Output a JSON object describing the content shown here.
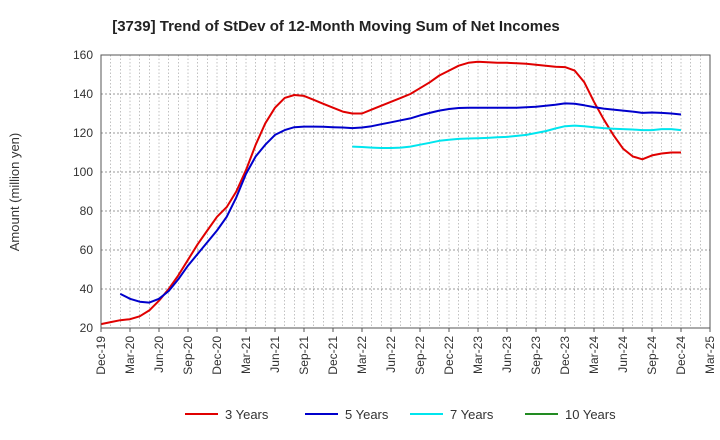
{
  "chart_data": {
    "type": "line",
    "title": "[3739]  Trend of StDev of 12-Month Moving Sum of Net Incomes",
    "ylabel": "Amount (million yen)",
    "xlabel": "",
    "ylim": [
      20,
      160
    ],
    "yticks": [
      20,
      40,
      60,
      80,
      100,
      120,
      140,
      160
    ],
    "xlim": [
      "2019-12",
      "2025-03"
    ],
    "xticks": [
      "Dec-19",
      "Mar-20",
      "Jun-20",
      "Sep-20",
      "Dec-20",
      "Mar-21",
      "Jun-21",
      "Sep-21",
      "Dec-21",
      "Mar-22",
      "Jun-22",
      "Sep-22",
      "Dec-22",
      "Mar-23",
      "Jun-23",
      "Sep-23",
      "Dec-23",
      "Mar-24",
      "Jun-24",
      "Sep-24",
      "Dec-24",
      "Mar-25"
    ],
    "grid": true,
    "legend_position": "bottom",
    "series": [
      {
        "name": "3 Years",
        "color": "#e00000",
        "points": [
          [
            "2019-12",
            22
          ],
          [
            "2020-01",
            23
          ],
          [
            "2020-02",
            24
          ],
          [
            "2020-03",
            24.5
          ],
          [
            "2020-04",
            26
          ],
          [
            "2020-05",
            29
          ],
          [
            "2020-06",
            34
          ],
          [
            "2020-07",
            40
          ],
          [
            "2020-08",
            47
          ],
          [
            "2020-09",
            55
          ],
          [
            "2020-10",
            63
          ],
          [
            "2020-11",
            70
          ],
          [
            "2020-12",
            77
          ],
          [
            "2021-01",
            82
          ],
          [
            "2021-02",
            90
          ],
          [
            "2021-03",
            101
          ],
          [
            "2021-04",
            114
          ],
          [
            "2021-05",
            125
          ],
          [
            "2021-06",
            133
          ],
          [
            "2021-07",
            138
          ],
          [
            "2021-08",
            139.5
          ],
          [
            "2021-09",
            139
          ],
          [
            "2021-10",
            137
          ],
          [
            "2021-11",
            135
          ],
          [
            "2021-12",
            133
          ],
          [
            "2022-01",
            131
          ],
          [
            "2022-02",
            130
          ],
          [
            "2022-03",
            130
          ],
          [
            "2022-04",
            132
          ],
          [
            "2022-05",
            134
          ],
          [
            "2022-06",
            136
          ],
          [
            "2022-07",
            138
          ],
          [
            "2022-08",
            140
          ],
          [
            "2022-09",
            143
          ],
          [
            "2022-10",
            146
          ],
          [
            "2022-11",
            149.5
          ],
          [
            "2022-12",
            152
          ],
          [
            "2023-01",
            154.5
          ],
          [
            "2023-02",
            156
          ],
          [
            "2023-03",
            156.5
          ],
          [
            "2023-04",
            156.3
          ],
          [
            "2023-05",
            156
          ],
          [
            "2023-06",
            156
          ],
          [
            "2023-07",
            155.8
          ],
          [
            "2023-08",
            155.5
          ],
          [
            "2023-09",
            155
          ],
          [
            "2023-10",
            154.5
          ],
          [
            "2023-11",
            154
          ],
          [
            "2023-12",
            153.8
          ],
          [
            "2024-01",
            152
          ],
          [
            "2024-02",
            146
          ],
          [
            "2024-03",
            136
          ],
          [
            "2024-04",
            127
          ],
          [
            "2024-05",
            119
          ],
          [
            "2024-06",
            112
          ],
          [
            "2024-07",
            108
          ],
          [
            "2024-08",
            106.5
          ],
          [
            "2024-09",
            108.5
          ],
          [
            "2024-10",
            109.5
          ],
          [
            "2024-11",
            110
          ],
          [
            "2024-12",
            110
          ]
        ]
      },
      {
        "name": "5 Years",
        "color": "#0000cc",
        "points": [
          [
            "2020-02",
            37.5
          ],
          [
            "2020-03",
            35
          ],
          [
            "2020-04",
            33.5
          ],
          [
            "2020-05",
            33
          ],
          [
            "2020-06",
            35
          ],
          [
            "2020-07",
            39
          ],
          [
            "2020-08",
            45
          ],
          [
            "2020-09",
            52
          ],
          [
            "2020-10",
            58
          ],
          [
            "2020-11",
            64
          ],
          [
            "2020-12",
            70
          ],
          [
            "2021-01",
            77
          ],
          [
            "2021-02",
            87
          ],
          [
            "2021-03",
            99
          ],
          [
            "2021-04",
            108
          ],
          [
            "2021-05",
            114
          ],
          [
            "2021-06",
            119
          ],
          [
            "2021-07",
            121.5
          ],
          [
            "2021-08",
            123
          ],
          [
            "2021-09",
            123.3
          ],
          [
            "2021-10",
            123.3
          ],
          [
            "2021-11",
            123.2
          ],
          [
            "2021-12",
            123
          ],
          [
            "2022-01",
            122.8
          ],
          [
            "2022-02",
            122.5
          ],
          [
            "2022-03",
            122.8
          ],
          [
            "2022-04",
            123.5
          ],
          [
            "2022-05",
            124.5
          ],
          [
            "2022-06",
            125.5
          ],
          [
            "2022-07",
            126.5
          ],
          [
            "2022-08",
            127.5
          ],
          [
            "2022-09",
            129
          ],
          [
            "2022-10",
            130.3
          ],
          [
            "2022-11",
            131.5
          ],
          [
            "2022-12",
            132.3
          ],
          [
            "2023-01",
            132.8
          ],
          [
            "2023-02",
            133
          ],
          [
            "2023-03",
            133
          ],
          [
            "2023-04",
            133
          ],
          [
            "2023-05",
            133
          ],
          [
            "2023-06",
            133
          ],
          [
            "2023-07",
            133
          ],
          [
            "2023-08",
            133.2
          ],
          [
            "2023-09",
            133.5
          ],
          [
            "2023-10",
            134
          ],
          [
            "2023-11",
            134.5
          ],
          [
            "2023-12",
            135.2
          ],
          [
            "2024-01",
            135
          ],
          [
            "2024-02",
            134.2
          ],
          [
            "2024-03",
            133.3
          ],
          [
            "2024-04",
            132.5
          ],
          [
            "2024-05",
            132
          ],
          [
            "2024-06",
            131.5
          ],
          [
            "2024-07",
            131
          ],
          [
            "2024-08",
            130.3
          ],
          [
            "2024-09",
            130.5
          ],
          [
            "2024-10",
            130.3
          ],
          [
            "2024-11",
            130
          ],
          [
            "2024-12",
            129.5
          ]
        ]
      },
      {
        "name": "7 Years",
        "color": "#00e5ee",
        "points": [
          [
            "2022-02",
            113
          ],
          [
            "2022-03",
            112.8
          ],
          [
            "2022-04",
            112.5
          ],
          [
            "2022-05",
            112.3
          ],
          [
            "2022-06",
            112.3
          ],
          [
            "2022-07",
            112.5
          ],
          [
            "2022-08",
            113
          ],
          [
            "2022-09",
            114
          ],
          [
            "2022-10",
            115
          ],
          [
            "2022-11",
            116
          ],
          [
            "2022-12",
            116.5
          ],
          [
            "2023-01",
            117
          ],
          [
            "2023-02",
            117.2
          ],
          [
            "2023-03",
            117.3
          ],
          [
            "2023-04",
            117.5
          ],
          [
            "2023-05",
            117.8
          ],
          [
            "2023-06",
            118
          ],
          [
            "2023-07",
            118.5
          ],
          [
            "2023-08",
            119
          ],
          [
            "2023-09",
            120
          ],
          [
            "2023-10",
            121
          ],
          [
            "2023-11",
            122.3
          ],
          [
            "2023-12",
            123.5
          ],
          [
            "2024-01",
            123.8
          ],
          [
            "2024-02",
            123.5
          ],
          [
            "2024-03",
            123
          ],
          [
            "2024-04",
            122.5
          ],
          [
            "2024-05",
            122.2
          ],
          [
            "2024-06",
            122
          ],
          [
            "2024-07",
            121.8
          ],
          [
            "2024-08",
            121.5
          ],
          [
            "2024-09",
            121.5
          ],
          [
            "2024-10",
            122
          ],
          [
            "2024-11",
            122
          ],
          [
            "2024-12",
            121.5
          ]
        ]
      },
      {
        "name": "10 Years",
        "color": "#228b22",
        "points": []
      }
    ]
  }
}
